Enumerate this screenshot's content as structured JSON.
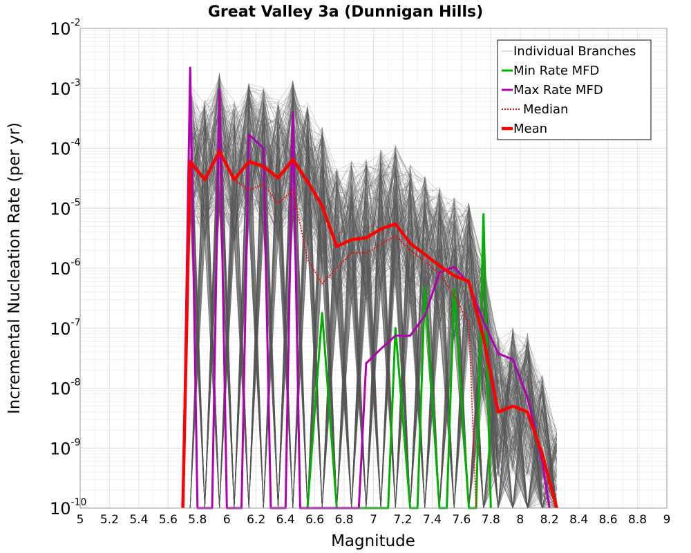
{
  "chart_data": {
    "type": "line",
    "title": "Great Valley 3a (Dunnigan Hills)",
    "xlabel": "Magnitude",
    "ylabel": "Incremental Nucleation Rate (per yr)",
    "xlim": [
      5,
      9
    ],
    "ylim": [
      1e-10,
      0.01
    ],
    "yscale": "log",
    "grid": true,
    "legend_position": "top-right",
    "x_ticks": [
      "5",
      "5.2",
      "5.4",
      "5.6",
      "5.8",
      "6",
      "6.2",
      "6.4",
      "6.6",
      "6.8",
      "7",
      "7.2",
      "7.4",
      "7.6",
      "7.8",
      "8",
      "8.2",
      "8.4",
      "8.6",
      "8.8",
      "9"
    ],
    "y_ticks": [
      {
        "base": "10",
        "exp": "-10"
      },
      {
        "base": "10",
        "exp": "-9"
      },
      {
        "base": "10",
        "exp": "-8"
      },
      {
        "base": "10",
        "exp": "-7"
      },
      {
        "base": "10",
        "exp": "-6"
      },
      {
        "base": "10",
        "exp": "-5"
      },
      {
        "base": "10",
        "exp": "-4"
      },
      {
        "base": "10",
        "exp": "-3"
      },
      {
        "base": "10",
        "exp": "-2"
      }
    ],
    "series": [
      {
        "name": "Individual Branches",
        "color": "#555555",
        "style": "thin",
        "note_values": "many overlapping branch curves spanning M5.75-M8.25, rates roughly 1e-10 to 2e-3"
      },
      {
        "name": "Min Rate MFD",
        "color": "#00b000",
        "style": "solid",
        "points": [
          [
            6.55,
            1e-10
          ],
          [
            6.65,
            1.8e-07
          ],
          [
            6.75,
            1e-10
          ],
          [
            7.1,
            1e-10
          ],
          [
            7.15,
            1e-07
          ],
          [
            7.25,
            1e-10
          ],
          [
            7.3,
            1e-10
          ],
          [
            7.35,
            4.8e-07
          ],
          [
            7.45,
            1e-10
          ],
          [
            7.5,
            1e-10
          ],
          [
            7.55,
            4.5e-07
          ],
          [
            7.65,
            1e-10
          ],
          [
            7.7,
            1e-10
          ],
          [
            7.75,
            8e-06
          ],
          [
            7.8,
            1e-10
          ]
        ]
      },
      {
        "name": "Max Rate MFD",
        "color": "#b000b0",
        "style": "solid",
        "points": [
          [
            5.7,
            1e-10
          ],
          [
            5.75,
            0.0022
          ],
          [
            5.8,
            1e-10
          ],
          [
            5.9,
            1e-10
          ],
          [
            5.95,
            0.00095
          ],
          [
            6.0,
            1e-10
          ],
          [
            6.1,
            1e-10
          ],
          [
            6.15,
            0.00017
          ],
          [
            6.25,
            0.0001
          ],
          [
            6.3,
            1e-10
          ],
          [
            6.4,
            1e-10
          ],
          [
            6.45,
            0.0004
          ],
          [
            6.5,
            1e-10
          ],
          [
            6.9,
            1e-10
          ],
          [
            6.95,
            2.6e-08
          ],
          [
            7.05,
            4.5e-08
          ],
          [
            7.15,
            7.5e-08
          ],
          [
            7.25,
            7.5e-08
          ],
          [
            7.35,
            1.6e-07
          ],
          [
            7.45,
            8.5e-07
          ],
          [
            7.55,
            1.05e-06
          ],
          [
            7.65,
            5.5e-07
          ],
          [
            7.75,
            1.3e-07
          ],
          [
            7.85,
            3.8e-08
          ],
          [
            7.95,
            3e-08
          ],
          [
            8.05,
            7e-09
          ],
          [
            8.15,
            6e-10
          ],
          [
            8.2,
            1e-10
          ]
        ]
      },
      {
        "name": "Median",
        "color": "#ff0000",
        "style": "dotted",
        "points": [
          [
            5.7,
            1e-10
          ],
          [
            5.75,
            6e-05
          ],
          [
            5.85,
            3e-05
          ],
          [
            5.95,
            9e-05
          ],
          [
            6.05,
            3e-05
          ],
          [
            6.15,
            2e-05
          ],
          [
            6.25,
            2.5e-05
          ],
          [
            6.35,
            1.2e-05
          ],
          [
            6.45,
            2e-05
          ],
          [
            6.55,
            1.4e-06
          ],
          [
            6.65,
            5.5e-07
          ],
          [
            6.75,
            1e-06
          ],
          [
            6.85,
            1.8e-06
          ],
          [
            6.95,
            1.8e-06
          ],
          [
            7.05,
            2.5e-06
          ],
          [
            7.15,
            3.5e-06
          ],
          [
            7.25,
            2e-06
          ],
          [
            7.35,
            1.3e-06
          ],
          [
            7.45,
            8e-07
          ],
          [
            7.55,
            3.5e-07
          ],
          [
            7.65,
            1.2e-07
          ],
          [
            7.7,
            1e-10
          ]
        ]
      },
      {
        "name": "Mean",
        "color": "#ff0000",
        "style": "thick",
        "points": [
          [
            5.7,
            1e-10
          ],
          [
            5.75,
            6e-05
          ],
          [
            5.85,
            3e-05
          ],
          [
            5.95,
            9e-05
          ],
          [
            6.05,
            3e-05
          ],
          [
            6.15,
            6e-05
          ],
          [
            6.25,
            5e-05
          ],
          [
            6.35,
            3.2e-05
          ],
          [
            6.45,
            6.5e-05
          ],
          [
            6.55,
            2.8e-05
          ],
          [
            6.65,
            1.1e-05
          ],
          [
            6.75,
            2.3e-06
          ],
          [
            6.85,
            3e-06
          ],
          [
            6.95,
            3.2e-06
          ],
          [
            7.05,
            4.5e-06
          ],
          [
            7.15,
            5.5e-06
          ],
          [
            7.25,
            2.6e-06
          ],
          [
            7.35,
            1.7e-06
          ],
          [
            7.45,
            1.1e-06
          ],
          [
            7.55,
            7.5e-07
          ],
          [
            7.65,
            6e-07
          ],
          [
            7.75,
            7e-08
          ],
          [
            7.85,
            4e-09
          ],
          [
            7.95,
            5e-09
          ],
          [
            8.05,
            4e-09
          ],
          [
            8.15,
            8e-10
          ],
          [
            8.25,
            1e-10
          ]
        ]
      }
    ]
  }
}
